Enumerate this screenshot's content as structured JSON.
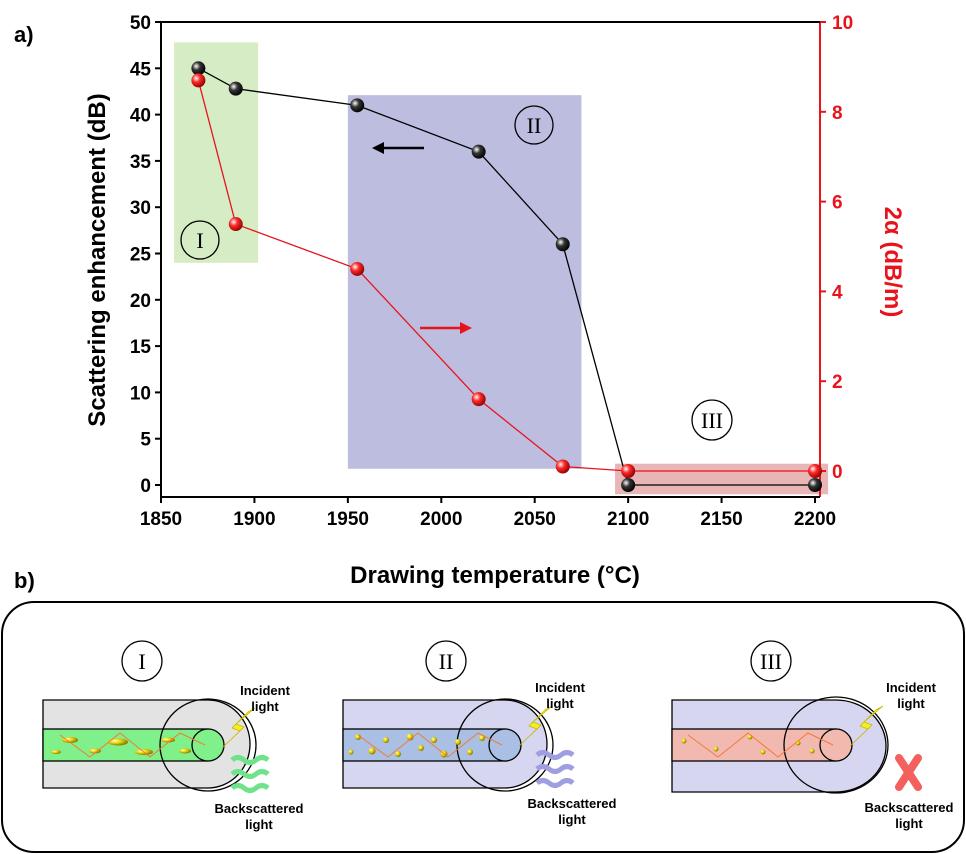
{
  "panel_labels": {
    "a": "a)",
    "b": "b)"
  },
  "chart_data": {
    "type": "line",
    "x": [
      1870,
      1890,
      1955,
      2020,
      2065,
      2100,
      2200
    ],
    "xlabel": "Drawing temperature (°C)",
    "ylabel": "Scattering enhancement (dB)",
    "y2label": "2α (dB/m)",
    "xlim": [
      1850,
      2210
    ],
    "ylim": [
      -1,
      50
    ],
    "y2lim": [
      -0.8,
      10
    ],
    "xticks": [
      "1850",
      "1900",
      "1950",
      "2000",
      "2050",
      "2100",
      "2150",
      "2200"
    ],
    "yticks": [
      "0",
      "5",
      "10",
      "15",
      "20",
      "25",
      "30",
      "35",
      "40",
      "45",
      "50"
    ],
    "y2ticks": [
      "0",
      "2",
      "4",
      "6",
      "8",
      "10"
    ],
    "series": [
      {
        "axis": "left",
        "color": "#000000",
        "values": [
          45,
          42.8,
          41,
          36,
          26,
          0,
          0
        ]
      },
      {
        "axis": "right",
        "color": "#e8131b",
        "values": [
          8.7,
          5.5,
          4.5,
          1.6,
          0.1,
          0,
          0
        ]
      }
    ],
    "regions": [
      {
        "label": "I",
        "color": "#d5ecc4"
      },
      {
        "label": "II",
        "color": "#bdbde0"
      },
      {
        "label": "III",
        "color": "#e8b6b6"
      }
    ]
  },
  "diagram": {
    "panels": [
      {
        "label": "I",
        "incident": [
          "Incident",
          "light"
        ],
        "backscattered": [
          "Backscattered",
          "light"
        ]
      },
      {
        "label": "II",
        "incident": [
          "Incident",
          "light"
        ],
        "backscattered": [
          "Backscattered",
          "light"
        ]
      },
      {
        "label": "III",
        "incident": [
          "Incident",
          "light"
        ],
        "backscattered": [
          "Backscattered",
          "light"
        ]
      }
    ]
  },
  "colors": {
    "black_series": "#000000",
    "red_series": "#e8131b",
    "region_I": "#d5ecc4",
    "region_II": "#bdbde0",
    "region_III": "#e8b6b6",
    "cladding_I": "#e3e3e3",
    "cladding_II": "#d6d6f0",
    "core_I": "#7ff08a",
    "core_II": "#a9bfe3",
    "core_III": "#f2b9b0"
  }
}
